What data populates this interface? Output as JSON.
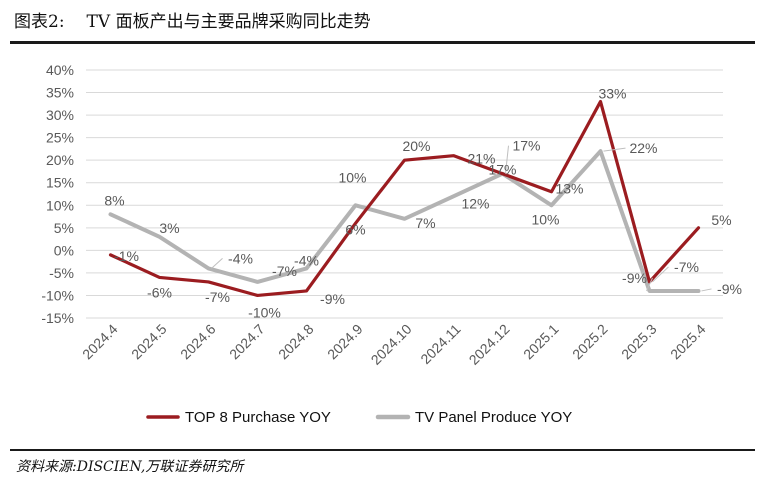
{
  "figure": {
    "label": "图表2:",
    "title": "TV 面板产出与主要品牌采购同比走势",
    "source": "资料来源:DISCIEN,万联证券研究所"
  },
  "chart_data": {
    "type": "line",
    "categories": [
      "2024.4",
      "2024.5",
      "2024.6",
      "2024.7",
      "2024.8",
      "2024.9",
      "2024.10",
      "2024.11",
      "2024.12",
      "2025.1",
      "2025.2",
      "2025.3",
      "2025.4"
    ],
    "y_ticks": [
      "40%",
      "35%",
      "30%",
      "25%",
      "20%",
      "15%",
      "10%",
      "5%",
      "0%",
      "-5%",
      "-10%",
      "-15%"
    ],
    "ylim": [
      -15,
      40
    ],
    "grid": true,
    "legend_position": "bottom",
    "series": [
      {
        "name": "TOP 8 Purchase YOY",
        "color": "#9b1c20",
        "values": [
          -1,
          -6,
          -7,
          -10,
          -9,
          6,
          20,
          21,
          17,
          13,
          33,
          -7,
          5
        ],
        "labels": [
          "-1%",
          "-6%",
          "-7%",
          "-10%",
          "-9%",
          "6%",
          "20%",
          "21%",
          "17%",
          "13%",
          "33%",
          "-7%",
          "5%"
        ]
      },
      {
        "name": "TV Panel Produce YOY",
        "color": "#b3b3b3",
        "values": [
          8,
          3,
          -4,
          -7,
          -4,
          10,
          7,
          12,
          17,
          10,
          22,
          -9,
          -9
        ],
        "labels": [
          "8%",
          "3%",
          "-4%",
          "-7%",
          "-4%",
          "10%",
          "7%",
          "12%",
          "17%",
          "10%",
          "22%",
          "-9%",
          "-9%"
        ]
      }
    ]
  }
}
